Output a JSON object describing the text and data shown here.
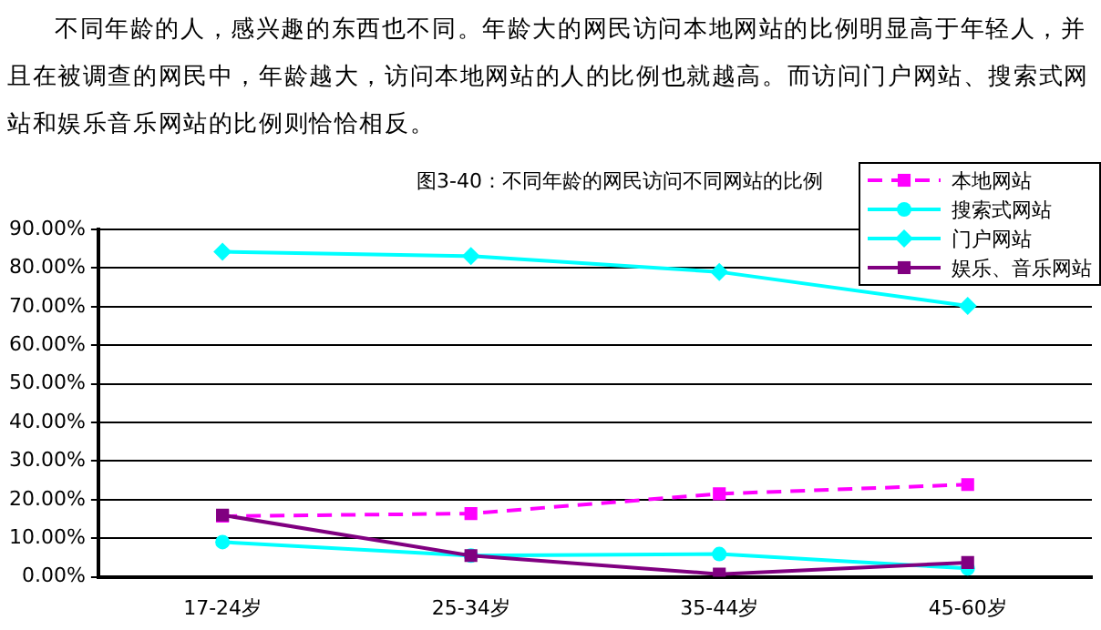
{
  "chart_data": {
    "type": "line",
    "title": "图3-40：不同年龄的网民访问不同网站的比例",
    "annotations": [
      "不同年龄的人，感兴趣的东西也不同。年龄大的网民访问本地网站的比例明显高于年轻人，并且在被调查的网民中，年龄越大，访问本地网站的人的比例也就越高。而访问门户网站、搜索式网站和娱乐音乐网站的比例则恰恰相反。"
    ],
    "categories": [
      "17-24岁",
      "25-34岁",
      "35-44岁",
      "45-60岁"
    ],
    "series": [
      {
        "name": "本地网站",
        "color": "#ff00ff",
        "line_style": "dashed",
        "marker": "square",
        "values": [
          15.7,
          16.4,
          21.5,
          23.9
        ]
      },
      {
        "name": "搜索式网站",
        "color": "#00ffff",
        "line_style": "solid",
        "marker": "circle",
        "values": [
          9.0,
          5.5,
          5.9,
          2.2
        ]
      },
      {
        "name": "门户网站",
        "color": "#00ffff",
        "line_style": "solid",
        "marker": "diamond",
        "values": [
          84.2,
          83.1,
          79.0,
          70.2
        ]
      },
      {
        "name": "娱乐、音乐网站",
        "color": "#800080",
        "line_style": "solid",
        "marker": "square",
        "values": [
          16.0,
          5.5,
          0.7,
          3.7
        ]
      }
    ],
    "ylim": [
      0,
      90
    ],
    "yticks": [
      {
        "value": 0,
        "label": "0.00%"
      },
      {
        "value": 10,
        "label": "10.00%"
      },
      {
        "value": 20,
        "label": "20.00%"
      },
      {
        "value": 30,
        "label": "30.00%"
      },
      {
        "value": 40,
        "label": "40.00%"
      },
      {
        "value": 50,
        "label": "50.00%"
      },
      {
        "value": 60,
        "label": "60.00%"
      },
      {
        "value": 70,
        "label": "70.00%"
      },
      {
        "value": 80,
        "label": "80.00%"
      },
      {
        "value": 90,
        "label": "90.00%"
      }
    ],
    "grid": "y",
    "legend": "top right"
  }
}
